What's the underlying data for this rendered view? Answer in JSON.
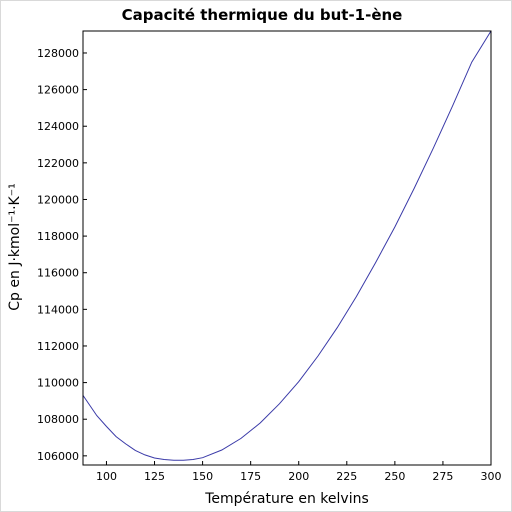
{
  "chart_data": {
    "type": "line",
    "title": "Capacité thermique du but-1-ène",
    "xlabel": "Température en kelvins",
    "ylabel": "Cp en J·kmol⁻¹·K⁻¹",
    "xlim": [
      87.8,
      300
    ],
    "ylim": [
      105500,
      129200
    ],
    "xticks": [
      100,
      125,
      150,
      175,
      200,
      225,
      250,
      275,
      300
    ],
    "yticks": [
      106000,
      108000,
      110000,
      112000,
      114000,
      116000,
      118000,
      120000,
      122000,
      124000,
      126000,
      128000
    ],
    "grid": false,
    "series": [
      {
        "color": "#3a3aa8",
        "x": [
          87.8,
          95,
          100,
          105,
          110,
          115,
          120,
          125,
          130,
          135,
          140,
          145,
          150,
          160,
          170,
          180,
          190,
          200,
          210,
          220,
          230,
          240,
          250,
          260,
          270,
          280,
          290,
          300
        ],
        "y": [
          109300,
          108200,
          107600,
          107050,
          106650,
          106300,
          106050,
          105880,
          105800,
          105760,
          105760,
          105800,
          105900,
          106320,
          106950,
          107800,
          108850,
          110050,
          111450,
          113000,
          114700,
          116550,
          118500,
          120600,
          122800,
          125100,
          127500,
          129200
        ]
      }
    ]
  }
}
